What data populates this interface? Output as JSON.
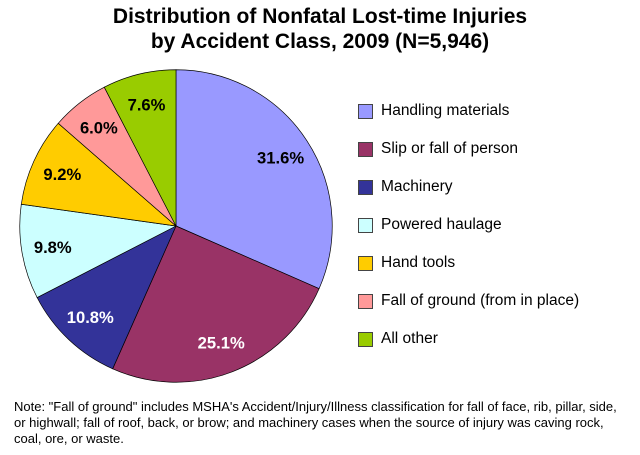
{
  "title": {
    "line1": "Distribution of Nonfatal Lost-time Injuries",
    "line2": "by Accident Class, 2009 (N=5,946)"
  },
  "note": "Note: \"Fall of ground\" includes MSHA's Accident/Injury/Illness classification for fall of face, rib, pillar, side, or highwall; fall of roof, back, or brow; and machinery cases when the source of injury was caving rock, coal, ore, or waste.",
  "chart_data": {
    "type": "pie",
    "title": "Distribution of Nonfatal Lost-time Injuries by Accident Class, 2009 (N=5,946)",
    "n_total": "5,946",
    "year": "2009",
    "start_angle_deg": -90,
    "direction": "clockwise",
    "legend_position": "right",
    "slices": [
      {
        "label": "Handling materials",
        "value": 31.6,
        "display": "31.6%",
        "color": "#9999FF",
        "label_color": "#000000"
      },
      {
        "label": "Slip or fall of person",
        "value": 25.1,
        "display": "25.1%",
        "color": "#993366",
        "label_color": "#FFFFFF"
      },
      {
        "label": "Machinery",
        "value": 10.8,
        "display": "10.8%",
        "color": "#333399",
        "label_color": "#FFFFFF"
      },
      {
        "label": "Powered haulage",
        "value": 9.8,
        "display": "9.8%",
        "color": "#CCFFFF",
        "label_color": "#000000"
      },
      {
        "label": "Hand tools",
        "value": 9.2,
        "display": "9.2%",
        "color": "#FFCC00",
        "label_color": "#000000"
      },
      {
        "label": "Fall of ground (from in place)",
        "value": 6.0,
        "display": "6.0%",
        "color": "#FF9999",
        "label_color": "#000000"
      },
      {
        "label": "All other",
        "value": 7.6,
        "display": "7.6%",
        "color": "#99CC00",
        "label_color": "#000000"
      }
    ]
  }
}
